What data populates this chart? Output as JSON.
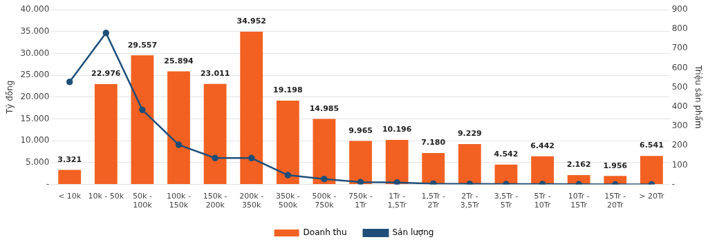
{
  "chart_data": {
    "type": "bar",
    "ylabel": "Tỷ đồng",
    "y2label": "Triệu sản phẩm",
    "categories": [
      "< 10k",
      "10k - 50k",
      "50k - 100k",
      "100k - 150k",
      "150k - 200k",
      "200k - 350k",
      "350k - 500k",
      "500k - 750k",
      "750k - 1Tr",
      "1Tr - 1,5Tr",
      "1,5Tr - 2Tr",
      "2Tr - 3,5Tr",
      "3,5Tr - 5Tr",
      "5Tr - 10Tr",
      "10Tr - 15Tr",
      "15Tr - 20Tr",
      "> 20Tr"
    ],
    "series": [
      {
        "name": "Doanh thu",
        "color": "#f26122",
        "values": [
          3321,
          22976,
          29557,
          25894,
          23011,
          34952,
          19198,
          14985,
          9965,
          10196,
          7180,
          9229,
          4542,
          6442,
          2162,
          1956,
          6541
        ],
        "value_labels": [
          "3.321",
          "22.976",
          "29.557",
          "25.894",
          "23.011",
          "34.952",
          "19.198",
          "14.985",
          "9.965",
          "10.196",
          "7.180",
          "9.229",
          "4.542",
          "6.442",
          "2.162",
          "1.956",
          "6.541"
        ]
      },
      {
        "name": "Sản lượng",
        "type": "line",
        "axis": "y2",
        "color": "#1f4e79",
        "marker": "circle",
        "values": [
          528,
          780,
          384,
          204,
          136,
          136,
          48,
          28,
          12,
          10,
          4,
          3,
          2,
          2,
          1,
          0,
          0
        ]
      }
    ],
    "ylim": [
      0,
      40000
    ],
    "yticks": [
      {
        "value": 0,
        "label": "-"
      },
      {
        "value": 5000,
        "label": "5.000"
      },
      {
        "value": 10000,
        "label": "10.000"
      },
      {
        "value": 15000,
        "label": "15.000"
      },
      {
        "value": 20000,
        "label": "20.000"
      },
      {
        "value": 25000,
        "label": "25.000"
      },
      {
        "value": 30000,
        "label": "30.000"
      },
      {
        "value": 35000,
        "label": "35.000"
      },
      {
        "value": 40000,
        "label": "40.000"
      }
    ],
    "y2lim": [
      0,
      900
    ],
    "y2ticks": [
      {
        "value": 0,
        "label": "-"
      },
      100,
      200,
      300,
      400,
      500,
      600,
      700,
      800,
      900
    ],
    "grid": "y",
    "legend": "bottom"
  }
}
